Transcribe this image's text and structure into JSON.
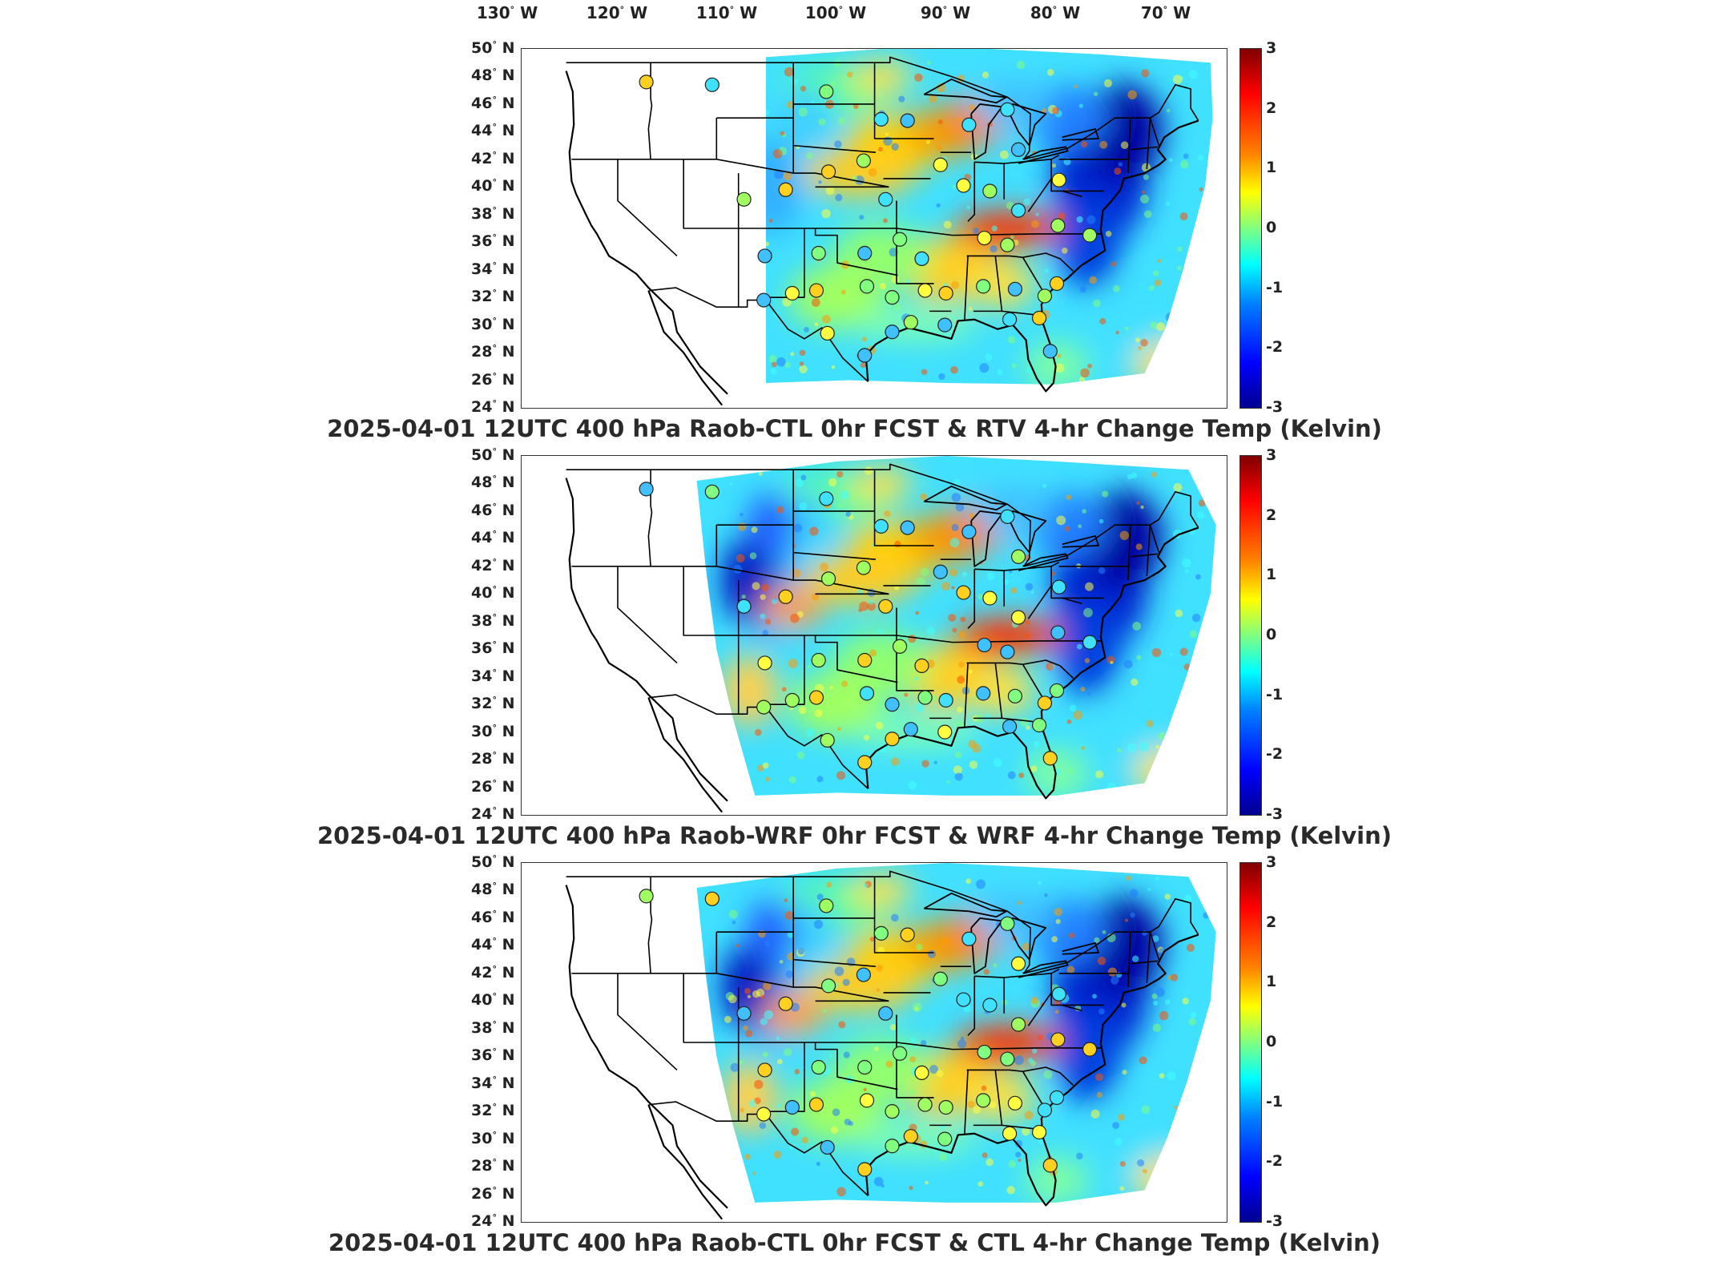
{
  "lon_labels": [
    {
      "deg": "130",
      "hemi": "W"
    },
    {
      "deg": "120",
      "hemi": "W"
    },
    {
      "deg": "110",
      "hemi": "W"
    },
    {
      "deg": "100",
      "hemi": "W"
    },
    {
      "deg": "90",
      "hemi": "W"
    },
    {
      "deg": "80",
      "hemi": "W"
    },
    {
      "deg": "70",
      "hemi": "W"
    }
  ],
  "lat_labels": [
    {
      "deg": "50",
      "hemi": "N"
    },
    {
      "deg": "48",
      "hemi": "N"
    },
    {
      "deg": "46",
      "hemi": "N"
    },
    {
      "deg": "44",
      "hemi": "N"
    },
    {
      "deg": "42",
      "hemi": "N"
    },
    {
      "deg": "40",
      "hemi": "N"
    },
    {
      "deg": "38",
      "hemi": "N"
    },
    {
      "deg": "36",
      "hemi": "N"
    },
    {
      "deg": "34",
      "hemi": "N"
    },
    {
      "deg": "32",
      "hemi": "N"
    },
    {
      "deg": "30",
      "hemi": "N"
    },
    {
      "deg": "28",
      "hemi": "N"
    },
    {
      "deg": "26",
      "hemi": "N"
    },
    {
      "deg": "24",
      "hemi": "N"
    }
  ],
  "colorbar": {
    "ticks": [
      "3",
      "2",
      "1",
      "0",
      "-1",
      "-2",
      "-3"
    ],
    "colormap": [
      "#00008f",
      "#0000ff",
      "#0080ff",
      "#00ffff",
      "#80ff80",
      "#ffff00",
      "#ff8000",
      "#ff0000",
      "#800000"
    ]
  },
  "panels": [
    {
      "title": "2025-04-01 12UTC 400 hPa Raob-CTL 0hr FCST & RTV 4-hr Change Temp (Kelvin)"
    },
    {
      "title": "2025-04-01 12UTC 400 hPa Raob-WRF 0hr FCST & WRF 4-hr Change Temp (Kelvin)"
    },
    {
      "title": "2025-04-01 12UTC 400 hPa Raob-CTL 0hr FCST & CTL 4-hr Change Temp (Kelvin)"
    }
  ]
}
